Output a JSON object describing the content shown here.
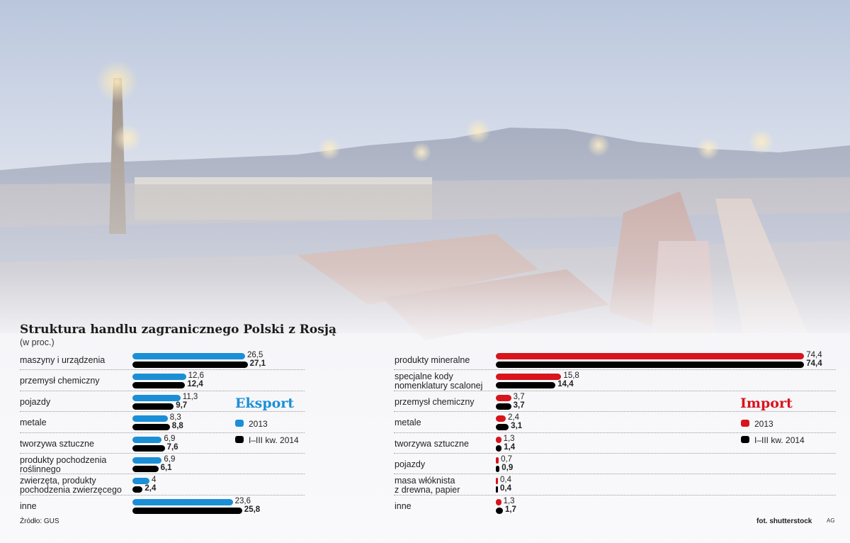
{
  "title": "Struktura handlu zagranicznego Polski z Rosją",
  "subtitle": "(w proc.)",
  "source": "Źródło: GUS",
  "photo_credit": "fot. shutterstock",
  "agency": "AG",
  "colors": {
    "export": "#1a8fd6",
    "import": "#d8141c",
    "period2": "#000000"
  },
  "chart_data": [
    {
      "type": "bar",
      "title": "Eksport",
      "legend": [
        "2013",
        "I–III kw. 2014"
      ],
      "categories": [
        "maszyny i urządzenia",
        "przemysł chemiczny",
        "pojazdy",
        "metale",
        "tworzywa sztuczne",
        "produkty pochodzenia roślinnego",
        "zwierzęta, produkty pochodzenia zwierzęcego",
        "inne"
      ],
      "category_lines": [
        [
          "maszyny i urządzenia"
        ],
        [
          "przemysł chemiczny"
        ],
        [
          "pojazdy"
        ],
        [
          "metale"
        ],
        [
          "tworzywa sztuczne"
        ],
        [
          "produkty pochodzenia",
          "roślinnego"
        ],
        [
          "zwierzęta, produkty",
          "pochodzenia zwierzęcego"
        ],
        [
          "inne"
        ]
      ],
      "series": [
        {
          "name": "2013",
          "values": [
            26.5,
            12.6,
            11.3,
            8.3,
            6.9,
            6.9,
            4,
            23.6
          ],
          "labels": [
            "26,5",
            "12,6",
            "11,3",
            "8,3",
            "6,9",
            "6,9",
            "4",
            "23,6"
          ]
        },
        {
          "name": "I–III kw. 2014",
          "values": [
            27.1,
            12.4,
            9.7,
            8.8,
            7.6,
            6.1,
            2.4,
            25.8
          ],
          "labels": [
            "27,1",
            "12,4",
            "9,7",
            "8,8",
            "7,6",
            "6,1",
            "2,4",
            "25,8"
          ]
        }
      ]
    },
    {
      "type": "bar",
      "title": "Import",
      "legend": [
        "2013",
        "I–III kw. 2014"
      ],
      "categories": [
        "produkty mineralne",
        "specjalne kody nomenklatury scalonej",
        "przemysł chemiczny",
        "metale",
        "tworzywa sztuczne",
        "pojazdy",
        "masa włóknista z drewna, papier",
        "inne"
      ],
      "category_lines": [
        [
          "produkty mineralne"
        ],
        [
          "specjalne kody",
          "nomenklatury scalonej"
        ],
        [
          "przemysł chemiczny"
        ],
        [
          "metale"
        ],
        [
          "tworzywa sztuczne"
        ],
        [
          "pojazdy"
        ],
        [
          "masa włóknista",
          "z drewna, papier"
        ],
        [
          "inne"
        ]
      ],
      "series": [
        {
          "name": "2013",
          "values": [
            74.4,
            15.8,
            3.7,
            2.4,
            1.3,
            0.7,
            0.4,
            1.3
          ],
          "labels": [
            "74,4",
            "15,8",
            "3,7",
            "2,4",
            "1,3",
            "0,7",
            "0,4",
            "1,3"
          ]
        },
        {
          "name": "I–III kw. 2014",
          "values": [
            74.4,
            14.4,
            3.7,
            3.1,
            1.4,
            0.9,
            0.4,
            1.7
          ],
          "labels": [
            "74,4",
            "14,4",
            "3,7",
            "3,1",
            "1,4",
            "0,9",
            "0,4",
            "1,7"
          ]
        }
      ]
    }
  ]
}
